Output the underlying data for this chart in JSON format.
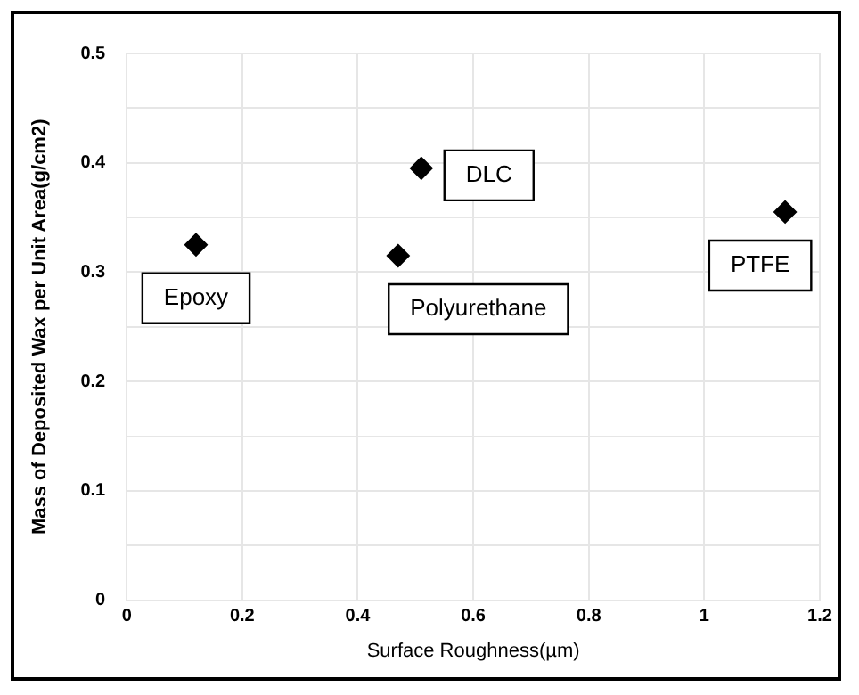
{
  "chart_data": {
    "type": "scatter",
    "xlabel": "Surface Roughness(µm)",
    "ylabel": "Mass of Deposited Wax per Unit Area(g/cm2)",
    "series": [
      {
        "color": "#000000",
        "x": [
          0.12,
          0.47,
          0.51,
          1.14
        ],
        "values": [
          0.325,
          0.315,
          0.395,
          0.355
        ]
      }
    ],
    "marker": "diamond",
    "xlim": [
      0,
      1.2
    ],
    "xticks": [
      0,
      0.2,
      0.4,
      0.6,
      0.8,
      1,
      1.2
    ],
    "ylim": [
      0,
      0.5
    ],
    "yticks": [
      0,
      {
        "value": 0.05,
        "label": null
      },
      0.1,
      {
        "value": 0.15,
        "label": null
      },
      0.2,
      {
        "value": 0.25,
        "label": null
      },
      0.3,
      {
        "value": 0.35,
        "label": null
      },
      0.4,
      {
        "value": 0.45,
        "label": null
      },
      0.5
    ],
    "grid": true,
    "annotations": [
      {
        "text": "Epoxy",
        "x": 0.12,
        "y": 0.325
      },
      {
        "text": "Polyurethane",
        "x": 0.47,
        "y": 0.315
      },
      {
        "text": "DLC",
        "x": 0.51,
        "y": 0.395
      },
      {
        "text": "PTFE",
        "x": 1.14,
        "y": 0.355
      }
    ]
  }
}
